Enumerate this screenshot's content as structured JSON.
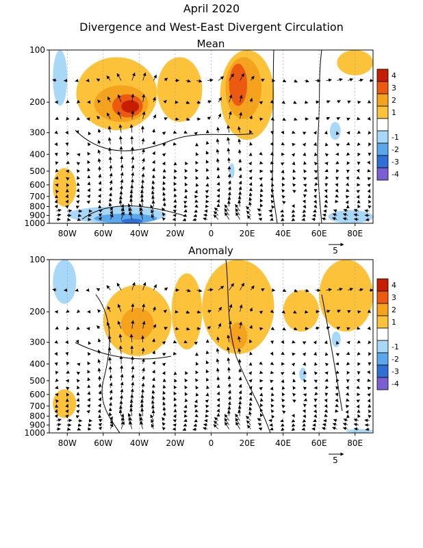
{
  "header": {
    "title": "April 2020",
    "subtitle": "Divergence and West-East Divergent Circulation"
  },
  "colors": {
    "c4": "#c81e00",
    "c3": "#ec5a10",
    "c2": "#f5a21c",
    "c1": "#fbc23a",
    "n1": "#a8d8f8",
    "n2": "#5aa8ec",
    "n3": "#2f6fd6",
    "n4": "#7a5ed2"
  },
  "chart_data": [
    {
      "type": "heatmap",
      "title": "Mean",
      "xlabel": "",
      "ylabel": "",
      "x_ticks": [
        "80W",
        "60W",
        "40W",
        "20W",
        "0",
        "20E",
        "40E",
        "60E",
        "80E"
      ],
      "x_tick_values": [
        -80,
        -60,
        -40,
        -20,
        0,
        20,
        40,
        60,
        80
      ],
      "xlim": [
        -90,
        90
      ],
      "y_ticks": [
        "100",
        "200",
        "300",
        "400",
        "500",
        "600",
        "700",
        "800",
        "900",
        "1000"
      ],
      "y_tick_values": [
        100,
        200,
        300,
        400,
        500,
        600,
        700,
        800,
        900,
        1000
      ],
      "ylim": [
        1000,
        100
      ],
      "y_scale": "log",
      "vector_reference": "5",
      "colorbar_labels": [
        "4",
        "3",
        "2",
        "1",
        "-1",
        "-2",
        "-3",
        "-4"
      ],
      "divergence_regions": [
        {
          "lon": [
            -75,
            -30
          ],
          "p": [
            110,
            290
          ],
          "level": 1
        },
        {
          "lon": [
            -65,
            -35
          ],
          "p": [
            160,
            260
          ],
          "level": 2
        },
        {
          "lon": [
            -55,
            -38
          ],
          "p": [
            180,
            245
          ],
          "level": 3
        },
        {
          "lon": [
            -50,
            -40
          ],
          "p": [
            195,
            230
          ],
          "level": 4
        },
        {
          "lon": [
            -30,
            -5
          ],
          "p": [
            110,
            260
          ],
          "level": 1
        },
        {
          "lon": [
            5,
            35
          ],
          "p": [
            100,
            330
          ],
          "level": 1
        },
        {
          "lon": [
            8,
            28
          ],
          "p": [
            110,
            250
          ],
          "level": 2
        },
        {
          "lon": [
            10,
            20
          ],
          "p": [
            120,
            210
          ],
          "level": 3
        },
        {
          "lon": [
            70,
            90
          ],
          "p": [
            100,
            140
          ],
          "level": 1
        },
        {
          "lon": [
            -88,
            -75
          ],
          "p": [
            480,
            800
          ],
          "level": 1
        },
        {
          "lon": [
            -88,
            -80
          ],
          "p": [
            100,
            210
          ],
          "level": -1
        },
        {
          "lon": [
            -80,
            -25
          ],
          "p": [
            800,
            1000
          ],
          "level": -1
        },
        {
          "lon": [
            -65,
            -30
          ],
          "p": [
            880,
            1000
          ],
          "level": -2
        },
        {
          "lon": [
            -50,
            -38
          ],
          "p": [
            940,
            1000
          ],
          "level": -3
        },
        {
          "lon": [
            65,
            90
          ],
          "p": [
            840,
            1000
          ],
          "level": -1
        },
        {
          "lon": [
            66,
            72
          ],
          "p": [
            260,
            330
          ],
          "level": -1
        },
        {
          "lon": [
            10,
            13
          ],
          "p": [
            450,
            550
          ],
          "level": -1
        }
      ]
    },
    {
      "type": "heatmap",
      "title": "Anomaly",
      "xlabel": "",
      "ylabel": "",
      "x_ticks": [
        "80W",
        "60W",
        "40W",
        "20W",
        "0",
        "20E",
        "40E",
        "60E",
        "80E"
      ],
      "x_tick_values": [
        -80,
        -60,
        -40,
        -20,
        0,
        20,
        40,
        60,
        80
      ],
      "xlim": [
        -90,
        90
      ],
      "y_ticks": [
        "100",
        "200",
        "300",
        "400",
        "500",
        "600",
        "700",
        "800",
        "900",
        "1000"
      ],
      "y_tick_values": [
        100,
        200,
        300,
        400,
        500,
        600,
        700,
        800,
        900,
        1000
      ],
      "ylim": [
        1000,
        100
      ],
      "y_scale": "log",
      "vector_reference": "5",
      "colorbar_labels": [
        "4",
        "3",
        "2",
        "1",
        "-1",
        "-2",
        "-3",
        "-4"
      ],
      "divergence_regions": [
        {
          "lon": [
            -60,
            -22
          ],
          "p": [
            140,
            360
          ],
          "level": 1
        },
        {
          "lon": [
            -50,
            -32
          ],
          "p": [
            190,
            290
          ],
          "level": 2
        },
        {
          "lon": [
            -22,
            -5
          ],
          "p": [
            120,
            330
          ],
          "level": 1
        },
        {
          "lon": [
            -5,
            35
          ],
          "p": [
            100,
            350
          ],
          "level": 1
        },
        {
          "lon": [
            10,
            20
          ],
          "p": [
            230,
            330
          ],
          "level": 2
        },
        {
          "lon": [
            40,
            60
          ],
          "p": [
            150,
            260
          ],
          "level": 1
        },
        {
          "lon": [
            60,
            90
          ],
          "p": [
            100,
            260
          ],
          "level": 1
        },
        {
          "lon": [
            -88,
            -75
          ],
          "p": [
            560,
            820
          ],
          "level": 1
        },
        {
          "lon": [
            -88,
            -75
          ],
          "p": [
            100,
            180
          ],
          "level": -1
        },
        {
          "lon": [
            49,
            53
          ],
          "p": [
            420,
            500
          ],
          "level": -1
        },
        {
          "lon": [
            67,
            72
          ],
          "p": [
            260,
            320
          ],
          "level": -1
        },
        {
          "lon": [
            75,
            90
          ],
          "p": [
            950,
            1000
          ],
          "level": -1
        }
      ]
    }
  ]
}
